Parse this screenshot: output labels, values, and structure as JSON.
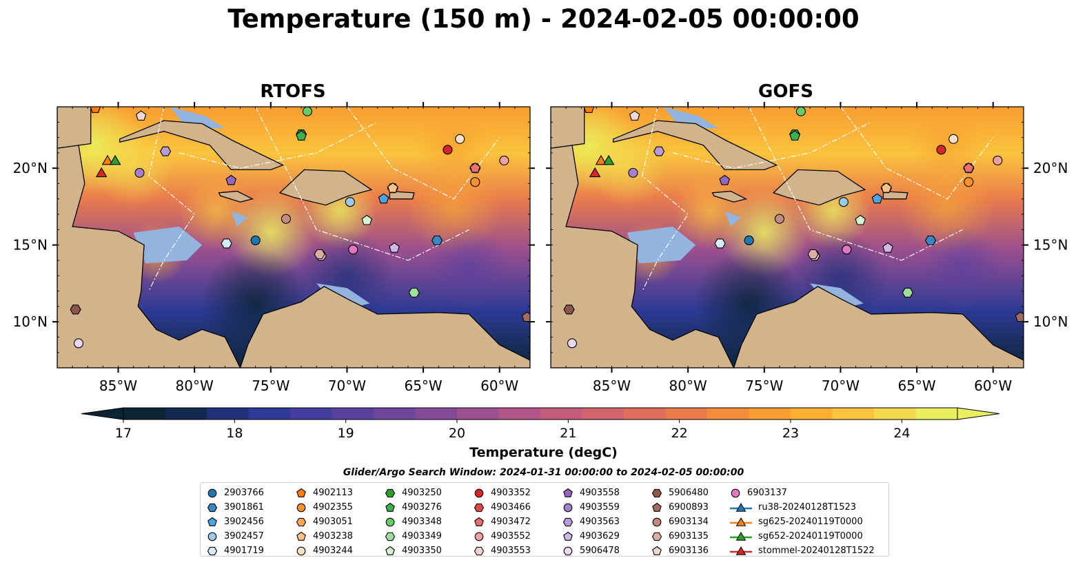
{
  "title": "Temperature (150 m) - 2024-02-05 00:00:00",
  "panels": [
    {
      "title": "RTOFS"
    },
    {
      "title": "GOFS"
    }
  ],
  "lat_ticks": [
    "20°N",
    "15°N",
    "10°N"
  ],
  "lon_ticks": [
    "85°W",
    "80°W",
    "75°W",
    "70°W",
    "65°W",
    "60°W"
  ],
  "colorbar": {
    "label": "Temperature (degC)",
    "ticks": [
      "17",
      "18",
      "19",
      "20",
      "21",
      "22",
      "23",
      "24"
    ],
    "colors": [
      "#0c2536",
      "#12294f",
      "#20307a",
      "#2d3a96",
      "#443c9e",
      "#5a409f",
      "#6f459b",
      "#854a96",
      "#9a4f8f",
      "#b05585",
      "#c25c78",
      "#d2646b",
      "#df6e5c",
      "#ea7c4c",
      "#f38c3c",
      "#f89d31",
      "#fbb031",
      "#fac43d",
      "#f3d94e",
      "#e9ef5e"
    ]
  },
  "search_window": "Glider/Argo Search Window: 2024-01-31 00:00:00 to 2024-02-05 00:00:00",
  "legend": [
    {
      "label": "2903766",
      "marker": "circle",
      "color": "#1f77b4"
    },
    {
      "label": "3901861",
      "marker": "hexagon",
      "color": "#3a86c4"
    },
    {
      "label": "3902456",
      "marker": "pentagon",
      "color": "#4fa3e0"
    },
    {
      "label": "3902457",
      "marker": "circle",
      "color": "#9ccae8"
    },
    {
      "label": "4901719",
      "marker": "hexagon",
      "color": "#d3ecf8"
    },
    {
      "label": "4902113",
      "marker": "pentagon",
      "color": "#ff7f0e"
    },
    {
      "label": "4902355",
      "marker": "circle",
      "color": "#ff922e"
    },
    {
      "label": "4903051",
      "marker": "hexagon",
      "color": "#ffa64f"
    },
    {
      "label": "4903238",
      "marker": "pentagon",
      "color": "#ffc38a"
    },
    {
      "label": "4903244",
      "marker": "circle",
      "color": "#ffe4c8"
    },
    {
      "label": "4903250",
      "marker": "hexagon",
      "color": "#2ca02c"
    },
    {
      "label": "4903276",
      "marker": "pentagon",
      "color": "#3cb04a"
    },
    {
      "label": "4903348",
      "marker": "circle",
      "color": "#66cc66"
    },
    {
      "label": "4903349",
      "marker": "hexagon",
      "color": "#9fe09c"
    },
    {
      "label": "4903350",
      "marker": "pentagon",
      "color": "#d4f5d0"
    },
    {
      "label": "4903352",
      "marker": "circle",
      "color": "#d62728"
    },
    {
      "label": "4903466",
      "marker": "hexagon",
      "color": "#e04848"
    },
    {
      "label": "4903472",
      "marker": "pentagon",
      "color": "#ea6f6f"
    },
    {
      "label": "4903552",
      "marker": "circle",
      "color": "#f5a0a0"
    },
    {
      "label": "4903553",
      "marker": "hexagon",
      "color": "#fbd2d2"
    },
    {
      "label": "4903558",
      "marker": "pentagon",
      "color": "#9467bd"
    },
    {
      "label": "4903559",
      "marker": "circle",
      "color": "#a77fcc"
    },
    {
      "label": "4903563",
      "marker": "hexagon",
      "color": "#bb9ad9"
    },
    {
      "label": "4903629",
      "marker": "pentagon",
      "color": "#d1b8e8"
    },
    {
      "label": "5906478",
      "marker": "circle",
      "color": "#ead9f6"
    },
    {
      "label": "5906480",
      "marker": "hexagon",
      "color": "#8c564b"
    },
    {
      "label": "6900893",
      "marker": "pentagon",
      "color": "#a26b5f"
    },
    {
      "label": "6903134",
      "marker": "circle",
      "color": "#c08b80"
    },
    {
      "label": "6903135",
      "marker": "hexagon",
      "color": "#dbaea5"
    },
    {
      "label": "6903136",
      "marker": "pentagon",
      "color": "#f3d8d2"
    },
    {
      "label": "6903137",
      "marker": "circle",
      "color": "#e377c2"
    },
    {
      "label": "ru38-20240128T1523",
      "marker": "triangle-line",
      "color": "#1f77b4"
    },
    {
      "label": "sg625-20240119T0000",
      "marker": "triangle-line",
      "color": "#ff7f0e"
    },
    {
      "label": "sg652-20240119T0000",
      "marker": "triangle-line",
      "color": "#2ca02c"
    },
    {
      "label": "stommel-20240128T1522",
      "marker": "triangle-line",
      "color": "#d62728"
    }
  ],
  "chart_data": {
    "type": "heatmap",
    "lon_range": [
      -89,
      -58
    ],
    "lat_range": [
      7,
      24
    ],
    "color_range": [
      17,
      24.5
    ],
    "floats": [
      {
        "id": "2903766",
        "lon": -76.0,
        "lat": 15.3
      },
      {
        "id": "3901861",
        "lon": -64.1,
        "lat": 15.3
      },
      {
        "id": "3902456",
        "lon": -67.6,
        "lat": 18.0
      },
      {
        "id": "3902457",
        "lon": -69.8,
        "lat": 17.8
      },
      {
        "id": "4901719",
        "lon": -77.9,
        "lat": 15.1
      },
      {
        "id": "4902113",
        "lon": -86.5,
        "lat": 23.9
      },
      {
        "id": "4902355",
        "lon": -61.6,
        "lat": 19.1
      },
      {
        "id": "4903051",
        "lon": -67.0,
        "lat": 18.7
      },
      {
        "id": "4903238",
        "lon": -67.0,
        "lat": 18.7
      },
      {
        "id": "4903244",
        "lon": -62.6,
        "lat": 21.9
      },
      {
        "id": "4903250",
        "lon": -73.0,
        "lat": 22.2
      },
      {
        "id": "4903276",
        "lon": -73.0,
        "lat": 22.1
      },
      {
        "id": "4903348",
        "lon": -72.6,
        "lat": 23.7
      },
      {
        "id": "4903349",
        "lon": -65.6,
        "lat": 11.9
      },
      {
        "id": "4903350",
        "lon": -68.7,
        "lat": 16.6
      },
      {
        "id": "4903352",
        "lon": -63.4,
        "lat": 21.2
      },
      {
        "id": "4903466",
        "lon": -61.6,
        "lat": 20.0
      },
      {
        "id": "4903472",
        "lon": -61.6,
        "lat": 20.0
      },
      {
        "id": "4903552",
        "lon": -59.7,
        "lat": 20.5
      },
      {
        "id": "4903553",
        "lon": -71.7,
        "lat": 14.3
      },
      {
        "id": "4903558",
        "lon": -77.6,
        "lat": 19.2
      },
      {
        "id": "4903559",
        "lon": -83.6,
        "lat": 19.7
      },
      {
        "id": "4903563",
        "lon": -81.9,
        "lat": 21.1
      },
      {
        "id": "4903629",
        "lon": -66.9,
        "lat": 14.8
      },
      {
        "id": "5906478",
        "lon": -87.6,
        "lat": 8.6
      },
      {
        "id": "5906480",
        "lon": -87.8,
        "lat": 10.8
      },
      {
        "id": "6900893",
        "lon": -58.2,
        "lat": 10.3
      },
      {
        "id": "6903134",
        "lon": -74.0,
        "lat": 16.7
      },
      {
        "id": "6903135",
        "lon": -71.8,
        "lat": 14.4
      },
      {
        "id": "6903136",
        "lon": -83.5,
        "lat": 23.4
      },
      {
        "id": "6903137",
        "lon": -69.6,
        "lat": 14.7
      }
    ],
    "gliders": [
      {
        "id": "sg625-20240119T0000",
        "lon": -85.7,
        "lat": 20.5
      },
      {
        "id": "sg652-20240119T0000",
        "lon": -85.2,
        "lat": 20.5
      },
      {
        "id": "stommel-20240128T1522",
        "lon": -86.1,
        "lat": 19.7
      }
    ]
  }
}
